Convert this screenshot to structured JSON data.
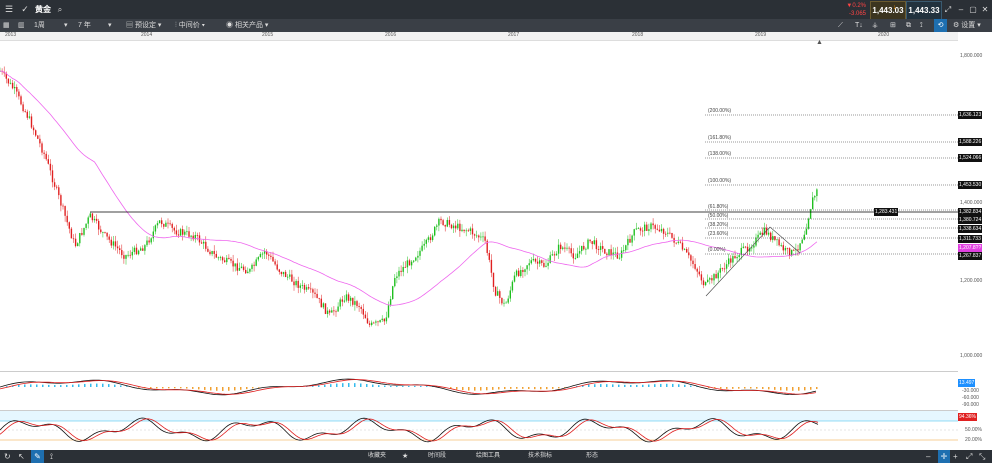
{
  "header": {
    "instrument": "黄金",
    "change_pct": "▼0.2%",
    "change_abs": "-3.065",
    "sell_price": "1,443.03",
    "buy_price": "1,443.33"
  },
  "toolbar": {
    "interval": "1周",
    "range": "7 年",
    "preset": "预设定",
    "price_type": "中间价",
    "related": "相关产品",
    "settings": "设置"
  },
  "timeline": {
    "years": [
      "2013",
      "2014",
      "2015",
      "2016",
      "2017",
      "2018",
      "2019",
      "2020"
    ]
  },
  "price_axis": {
    "labels": [
      "1,800.000",
      "1,400.000",
      "1,200.000",
      "1,000.000"
    ],
    "level_boxes": [
      "1,636.123",
      "1,588.226",
      "1,524.066",
      "1,453.530",
      "1,382.834",
      "1,380.724",
      "1,338.634",
      "1,311.733",
      "1,207.8??",
      "1,267.837"
    ],
    "current_box": "1,283.431"
  },
  "fib_labels": [
    "(200.00%)",
    "(161.80%)",
    "(138.00%)",
    "(100.00%)",
    "(61.80%)",
    "(50.00%)",
    "(38.20%)",
    "(23.60%)",
    "(0.00%)"
  ],
  "macd": {
    "value_box": "13.497",
    "axis": [
      "-30.000",
      "-60.000",
      "-90.000"
    ]
  },
  "stoch": {
    "value_box": "94.36%",
    "axis": [
      "50.00%",
      "20.00%"
    ]
  },
  "bottom": {
    "tabs": [
      "收藏夹",
      "时间段",
      "绘图工具",
      "技术指标",
      "形态"
    ]
  },
  "colors": {
    "up": "#1fbf1f",
    "down": "#e02020",
    "ma": "#ee66ee",
    "accent": "#1e90ff"
  }
}
